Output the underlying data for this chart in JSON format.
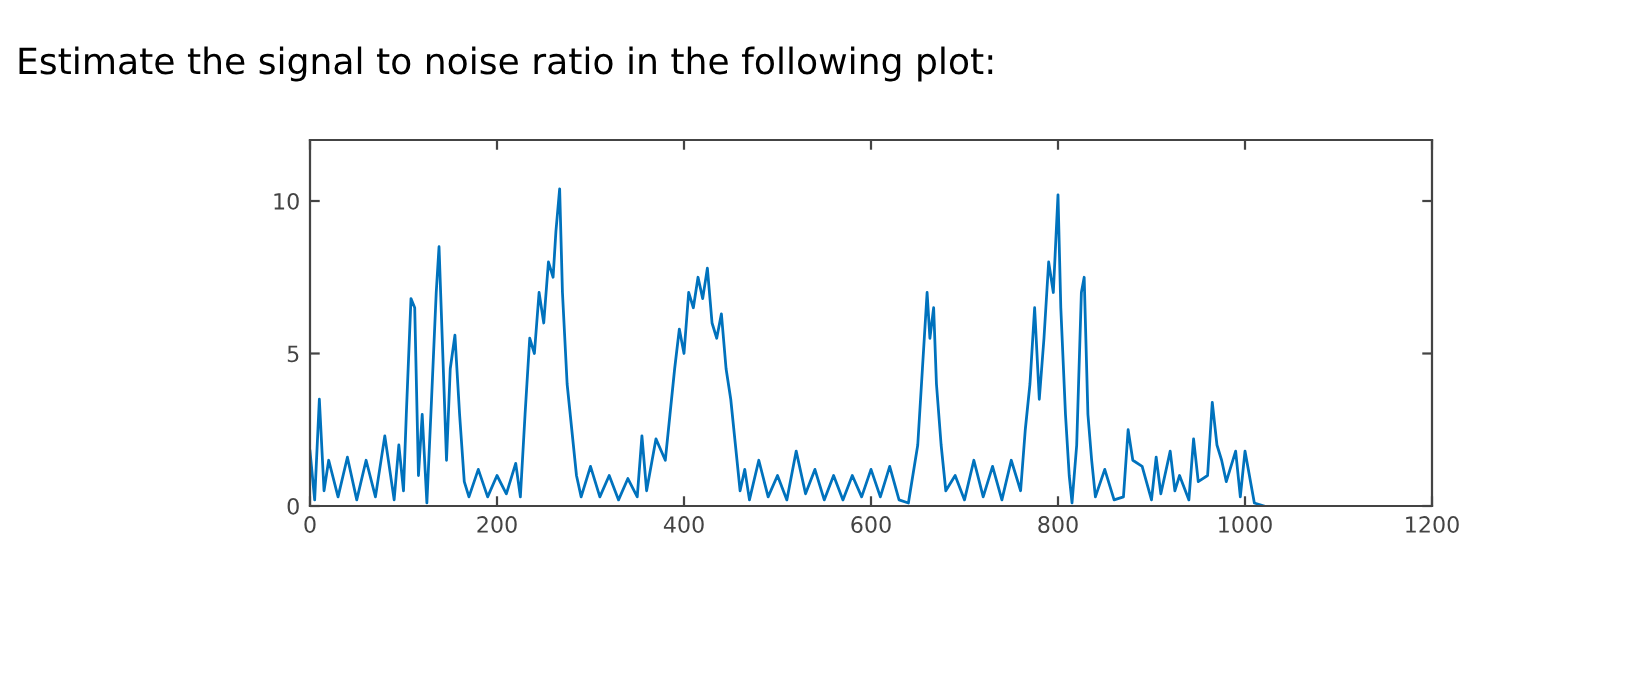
{
  "chart_data": {
    "type": "line",
    "title": "Estimate the signal to noise ratio in the following plot:",
    "x": [
      0,
      5,
      10,
      15,
      20,
      30,
      40,
      50,
      60,
      70,
      80,
      90,
      95,
      100,
      103,
      108,
      112,
      116,
      120,
      125,
      130,
      135,
      138,
      142,
      146,
      150,
      155,
      160,
      165,
      170,
      180,
      190,
      200,
      210,
      220,
      225,
      230,
      235,
      240,
      245,
      250,
      255,
      260,
      263,
      267,
      270,
      275,
      280,
      285,
      290,
      300,
      310,
      320,
      330,
      340,
      350,
      355,
      360,
      370,
      380,
      385,
      390,
      395,
      400,
      405,
      410,
      415,
      420,
      425,
      430,
      435,
      440,
      445,
      450,
      455,
      460,
      465,
      470,
      480,
      490,
      500,
      510,
      520,
      530,
      540,
      550,
      560,
      570,
      580,
      590,
      600,
      610,
      620,
      630,
      640,
      650,
      655,
      660,
      663,
      667,
      670,
      675,
      680,
      690,
      700,
      710,
      720,
      730,
      740,
      750,
      760,
      765,
      770,
      775,
      780,
      785,
      790,
      795,
      800,
      803,
      808,
      812,
      815,
      820,
      825,
      828,
      832,
      836,
      840,
      850,
      860,
      870,
      875,
      880,
      890,
      900,
      905,
      910,
      920,
      925,
      930,
      940,
      945,
      950,
      960,
      965,
      970,
      975,
      980,
      990,
      995,
      1000,
      1010,
      1020
    ],
    "series": [
      {
        "color": "#0072bd",
        "values": [
          1.8,
          0.2,
          3.5,
          0.5,
          1.5,
          0.3,
          1.6,
          0.2,
          1.5,
          0.3,
          2.3,
          0.2,
          2.0,
          0.5,
          3.0,
          6.8,
          6.5,
          1.0,
          3.0,
          0.1,
          3.5,
          7.0,
          8.5,
          5.0,
          1.5,
          4.5,
          5.6,
          3.0,
          0.8,
          0.3,
          1.2,
          0.3,
          1.0,
          0.4,
          1.4,
          0.3,
          3.0,
          5.5,
          5.0,
          7.0,
          6.0,
          8.0,
          7.5,
          9.0,
          10.4,
          7.0,
          4.0,
          2.5,
          1.0,
          0.3,
          1.3,
          0.3,
          1.0,
          0.2,
          0.9,
          0.3,
          2.3,
          0.5,
          2.2,
          1.5,
          3.0,
          4.5,
          5.8,
          5.0,
          7.0,
          6.5,
          7.5,
          6.8,
          7.8,
          6.0,
          5.5,
          6.3,
          4.5,
          3.5,
          2.0,
          0.5,
          1.2,
          0.2,
          1.5,
          0.3,
          1.0,
          0.2,
          1.8,
          0.4,
          1.2,
          0.2,
          1.0,
          0.2,
          1.0,
          0.3,
          1.2,
          0.3,
          1.3,
          0.2,
          0.1,
          2.0,
          4.5,
          7.0,
          5.5,
          6.5,
          4.0,
          2.0,
          0.5,
          1.0,
          0.2,
          1.5,
          0.3,
          1.3,
          0.2,
          1.5,
          0.5,
          2.5,
          4.0,
          6.5,
          3.5,
          5.5,
          8.0,
          7.0,
          10.2,
          6.5,
          3.0,
          1.0,
          0.1,
          2.0,
          7.0,
          7.5,
          3.0,
          1.5,
          0.3,
          1.2,
          0.2,
          0.3,
          2.5,
          1.5,
          1.3,
          0.2,
          1.6,
          0.4,
          1.8,
          0.5,
          1.0,
          0.2,
          2.2,
          0.8,
          1.0,
          3.4,
          2.0,
          1.5,
          0.8,
          1.8,
          0.3,
          1.8,
          0.1,
          0.0
        ]
      }
    ],
    "xlim": [
      0,
      1200
    ],
    "ylim": [
      0,
      12
    ],
    "xticks": [
      0,
      200,
      400,
      600,
      800,
      1000,
      1200
    ],
    "yticks": [
      0,
      5,
      10
    ],
    "grid": false,
    "legend": false
  }
}
